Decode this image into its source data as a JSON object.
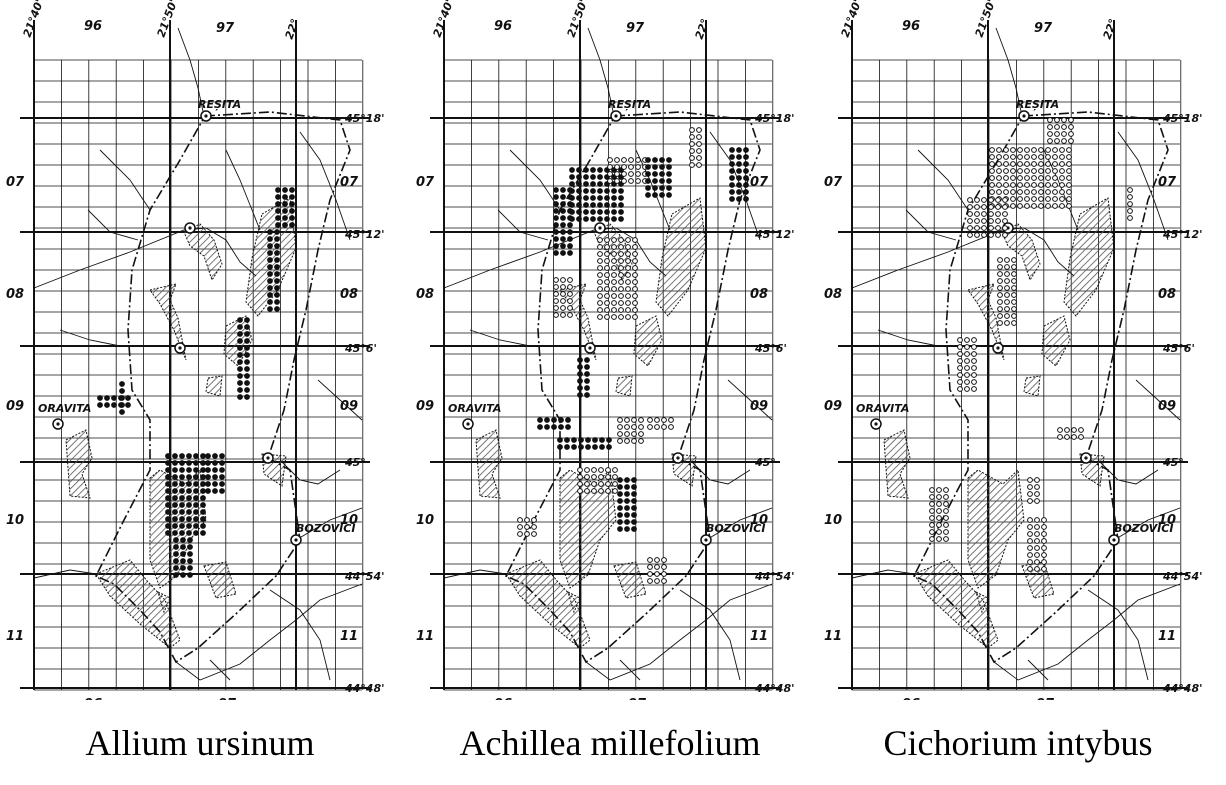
{
  "colors": {
    "ink": "#111111",
    "paper": "#ffffff",
    "hatch": "#555555"
  },
  "map_labels": {
    "top_lon": [
      "21°40'",
      "21°50'",
      "22°"
    ],
    "col_numbers": [
      "96",
      "97"
    ],
    "row_numbers": [
      "07",
      "08",
      "09",
      "10",
      "11"
    ],
    "lat_labels": [
      "45°18'",
      "45°12'",
      "45°6'",
      "45°",
      "44°54'",
      "44°48'"
    ],
    "towns": {
      "resita": "REȘITA",
      "oravita": "ORAVITA",
      "bozovici": "BOZOVICI"
    }
  },
  "panels": [
    {
      "caption": "Allium ursinum",
      "symbol": "filled-dot"
    },
    {
      "caption": "Achillea millefolium",
      "symbol": "filled-and-open-dot"
    },
    {
      "caption": "Cichorium intybus",
      "symbol": "open-dot"
    }
  ]
}
